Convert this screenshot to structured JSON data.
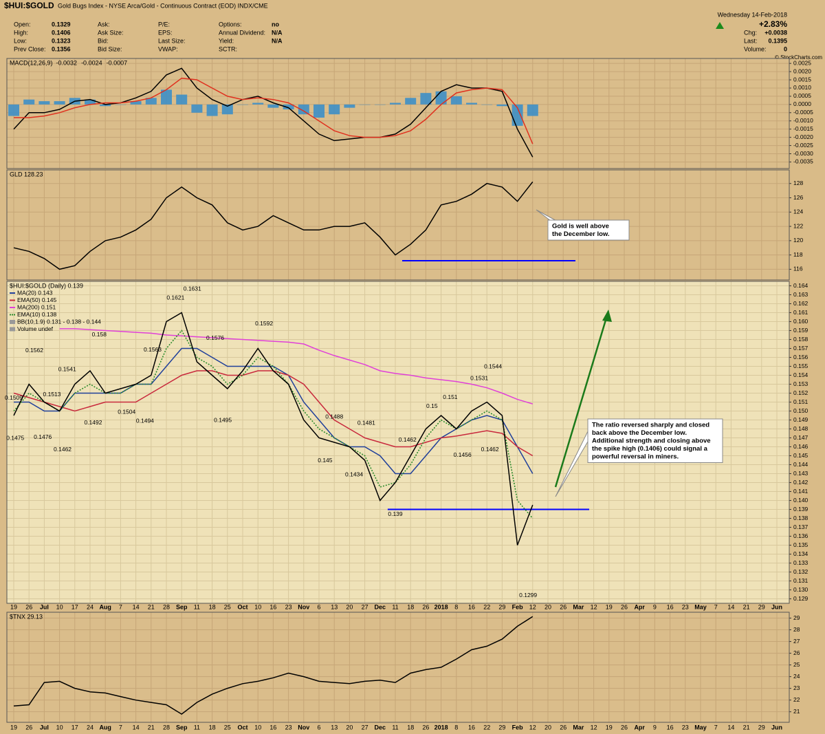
{
  "header": {
    "symbol": "$HUI:$GOLD",
    "description": "Gold Bugs Index - NYSE Arca/Gold - Continuous Contract (EOD) INDX/CME",
    "date": "Wednesday 14-Feb-2018",
    "change_pct": "+2.83%",
    "quote": [
      {
        "label": "Chg:",
        "value": "+0.0038"
      },
      {
        "label": "Last:",
        "value": "0.1395"
      },
      {
        "label": "Volume:",
        "value": "0"
      }
    ],
    "copyright": "© StockCharts.com",
    "fields": [
      [
        {
          "label": "Open:",
          "value": "0.1329"
        },
        {
          "label": "High:",
          "value": "0.1406"
        },
        {
          "label": "Low:",
          "value": "0.1323"
        },
        {
          "label": "Prev Close:",
          "value": "0.1356"
        }
      ],
      [
        {
          "label": "Ask:"
        },
        {
          "label": "Ask Size:"
        },
        {
          "label": "Bid:"
        },
        {
          "label": "Bid Size:"
        }
      ],
      [
        {
          "label": "P/E:"
        },
        {
          "label": "EPS:"
        },
        {
          "label": "Last Size:"
        },
        {
          "label": "VWAP:"
        }
      ],
      [
        {
          "label": "Options:",
          "value": "no"
        },
        {
          "label": "Annual Dividend:",
          "value": "N/A"
        },
        {
          "label": "Yield:",
          "value": "N/A"
        },
        {
          "label": "SCTR:"
        }
      ]
    ]
  },
  "chart_data": [
    {
      "type": "line",
      "title": "MACD(12,26,9)",
      "ylim": [
        -0.0039,
        0.0028
      ],
      "yticks": [
        0.0025,
        {
          "value": 0.002,
          "label": "0.0020"
        },
        0.0015,
        {
          "value": 0.001,
          "label": "0.0010"
        },
        0.0005,
        {
          "value": 0,
          "label": "0.0000"
        },
        -0.0005,
        {
          "value": -0.001,
          "label": "-0.0010"
        },
        -0.0015,
        {
          "value": -0.002,
          "label": "-0.0020"
        },
        -0.0025,
        {
          "value": -0.003,
          "label": "-0.0030"
        },
        -0.0035
      ],
      "series": [
        {
          "name": "-0.0032",
          "color": "#000000",
          "values": [
            -0.0015,
            -0.0005,
            -0.0005,
            -0.0003,
            0.0002,
            0.0003,
            0,
            0.0001,
            0.0004,
            0.0008,
            0.0018,
            0.0022,
            0.001,
            0.0003,
            -0.0001,
            0.0003,
            0.0005,
            0.0001,
            -0.0002,
            -0.001,
            -0.0018,
            -0.0022,
            -0.0021,
            -0.002,
            -0.002,
            -0.0018,
            -0.0012,
            -0.0002,
            0.0008,
            0.0012,
            0.001,
            0.001,
            0.0008,
            -0.0015,
            -0.0032,
            null,
            null,
            null,
            null,
            null,
            null,
            null,
            null,
            null,
            null,
            null,
            null,
            null,
            null,
            null,
            null
          ]
        },
        {
          "name": "-0.0024",
          "color": "#e0301e",
          "values": [
            -0.0008,
            -0.0008,
            -0.0007,
            -0.0005,
            -0.0002,
            0,
            0.0001,
            0.0001,
            0.0002,
            0.0004,
            0.0009,
            0.0016,
            0.0015,
            0.001,
            0.0005,
            0.0003,
            0.0004,
            0.0003,
            0.0001,
            -0.0004,
            -0.001,
            -0.0016,
            -0.0019,
            -0.002,
            -0.002,
            -0.0019,
            -0.0016,
            -0.0009,
            0,
            0.0007,
            0.0009,
            0.001,
            0.0009,
            -0.0002,
            -0.0024,
            null,
            null,
            null,
            null,
            null,
            null,
            null,
            null,
            null,
            null,
            null,
            null,
            null,
            null,
            null,
            null
          ]
        },
        {
          "name": "-0.0007",
          "color": "#3d8fc7",
          "type": "bar",
          "values": [
            -0.0007,
            0.0003,
            0.0002,
            0.0002,
            0.0004,
            0.0003,
            -0.0001,
            0,
            0.0002,
            0.0004,
            0.0009,
            0.0006,
            -0.0005,
            -0.0007,
            -0.0006,
            0,
            0.0001,
            -0.0002,
            -0.0003,
            -0.0006,
            -0.0008,
            -0.0006,
            -0.0002,
            0,
            0,
            0.0001,
            0.0004,
            0.0007,
            0.0008,
            0.0005,
            0.0001,
            0,
            -0.0001,
            -0.0013,
            -0.0007,
            null,
            null,
            null,
            null,
            null,
            null,
            null,
            null,
            null,
            null,
            null,
            null,
            null,
            null,
            null,
            null
          ]
        }
      ]
    },
    {
      "type": "line",
      "title": "GLD 128.23",
      "color": "#000000",
      "ylim": [
        114.5,
        129.9
      ],
      "yticks": [
        116,
        118,
        120,
        122,
        124,
        126,
        128
      ],
      "values": [
        119.0,
        118.5,
        117.5,
        116.0,
        116.5,
        118.5,
        120.0,
        120.5,
        121.5,
        123.0,
        126.0,
        127.5,
        126.0,
        125.0,
        122.5,
        121.5,
        122.0,
        123.5,
        122.5,
        121.5,
        121.5,
        122.0,
        122.0,
        122.5,
        120.5,
        118.0,
        119.5,
        121.5,
        125.0,
        125.5,
        126.5,
        128.0,
        127.5,
        125.5,
        128.23,
        null,
        null,
        null,
        null,
        null,
        null,
        null,
        null,
        null,
        null,
        null,
        null,
        null,
        null,
        null,
        null
      ],
      "level": 117.2,
      "level_color": "#0000ff",
      "callout": [
        "Gold is well above",
        "the December low."
      ],
      "callout_color": "#0000cc"
    },
    {
      "type": "line",
      "title": "$HUI:$GOLD (Daily) 0.139",
      "color": "#000000",
      "categories": [
        "19",
        "26",
        "Jul",
        "10",
        "17",
        "24",
        "Aug",
        "7",
        "14",
        "21",
        "28",
        "Sep",
        "11",
        "18",
        "25",
        "Oct",
        "10",
        "16",
        "23",
        "Nov",
        "6",
        "13",
        "20",
        "27",
        "Dec",
        "11",
        "18",
        "26",
        "2018",
        "8",
        "16",
        "22",
        "29",
        "Feb",
        "12",
        "20",
        "26",
        "Mar",
        "12",
        "19",
        "26",
        "Apr",
        "9",
        "16",
        "23",
        "May",
        "7",
        "14",
        "21",
        "29",
        "Jun"
      ],
      "ylim": [
        0.1285,
        0.1645
      ],
      "yticks": [
        0.129,
        {
          "value": 0.13,
          "label": "0.130"
        },
        0.131,
        0.132,
        0.133,
        0.134,
        0.135,
        0.136,
        0.137,
        0.138,
        0.139,
        {
          "value": 0.14,
          "label": "0.140"
        },
        0.141,
        0.142,
        0.143,
        0.144,
        0.145,
        0.146,
        0.147,
        0.148,
        0.149,
        {
          "value": 0.15,
          "label": "0.150"
        },
        0.151,
        0.152,
        0.153,
        0.154,
        0.155,
        0.156,
        0.157,
        0.158,
        0.159,
        {
          "value": 0.16,
          "label": "0.160"
        },
        0.161,
        0.162,
        0.163,
        0.164
      ],
      "values": [
        0.1495,
        0.153,
        0.151,
        0.15,
        0.153,
        0.1545,
        0.152,
        0.1525,
        0.153,
        0.154,
        0.16,
        0.161,
        0.1555,
        0.154,
        0.1525,
        0.1545,
        0.157,
        0.1545,
        0.153,
        0.149,
        0.147,
        0.1465,
        0.146,
        0.1445,
        0.14,
        0.142,
        0.145,
        0.148,
        0.1495,
        0.148,
        0.15,
        0.151,
        0.1495,
        0.135,
        0.1395,
        null,
        null,
        null,
        null,
        null,
        null,
        null,
        null,
        null,
        null,
        null,
        null,
        null,
        null,
        null,
        null
      ],
      "series": [
        {
          "name": "MA(20) 0.143",
          "color": "#1f3f9a",
          "values": [
            0.151,
            0.151,
            0.15,
            0.15,
            0.152,
            0.152,
            0.152,
            0.152,
            0.153,
            0.153,
            0.155,
            0.157,
            0.157,
            0.156,
            0.155,
            0.155,
            0.155,
            0.155,
            0.154,
            0.151,
            0.149,
            0.147,
            0.146,
            0.146,
            0.145,
            0.143,
            0.143,
            0.145,
            0.147,
            0.148,
            0.149,
            0.1495,
            0.149,
            0.146,
            0.143,
            null,
            null,
            null,
            null,
            null,
            null,
            null,
            null,
            null,
            null,
            null,
            null,
            null,
            null,
            null,
            null
          ]
        },
        {
          "name": "EMA(50) 0.145",
          "color": "#c8283c",
          "values": [
            0.152,
            0.1515,
            0.151,
            0.1505,
            0.15,
            0.1505,
            0.151,
            0.151,
            0.151,
            0.152,
            0.153,
            0.154,
            0.1545,
            0.1545,
            0.154,
            0.154,
            0.1545,
            0.1545,
            0.154,
            0.153,
            0.151,
            0.149,
            0.148,
            0.147,
            0.1465,
            0.146,
            0.146,
            0.1465,
            0.147,
            0.1472,
            0.1475,
            0.1478,
            0.1475,
            0.146,
            0.145,
            null,
            null,
            null,
            null,
            null,
            null,
            null,
            null,
            null,
            null,
            null,
            null,
            null,
            null,
            null,
            null
          ]
        },
        {
          "name": "MA(200) 0.151",
          "color": "#e040d8",
          "values": [
            null,
            null,
            null,
            0.1592,
            0.1592,
            0.1591,
            0.159,
            0.1589,
            0.1588,
            0.1587,
            0.1585,
            0.1584,
            0.1583,
            0.1582,
            0.1581,
            0.158,
            0.1579,
            0.1578,
            0.1577,
            0.1575,
            0.1568,
            0.1562,
            0.1557,
            0.1552,
            0.1545,
            0.1542,
            0.154,
            0.1537,
            0.1535,
            0.1533,
            0.153,
            0.1526,
            0.152,
            0.1513,
            0.1508,
            null,
            null,
            null,
            null,
            null,
            null,
            null,
            null,
            null,
            null,
            null,
            null,
            null,
            null,
            null,
            null
          ]
        },
        {
          "name": "EMA(10) 0.138",
          "color": "#2a8a2a",
          "line_style": "dotted",
          "values": [
            0.15,
            0.152,
            0.151,
            0.15,
            0.152,
            0.153,
            0.152,
            0.152,
            0.153,
            0.153,
            0.157,
            0.159,
            0.156,
            0.155,
            0.153,
            0.154,
            0.156,
            0.155,
            0.153,
            0.15,
            0.148,
            0.147,
            0.146,
            0.145,
            0.1415,
            0.142,
            0.144,
            0.147,
            0.149,
            0.148,
            0.149,
            0.15,
            0.149,
            0.14,
            0.138,
            null,
            null,
            null,
            null,
            null,
            null,
            null,
            null,
            null,
            null,
            null,
            null,
            null,
            null,
            null,
            null
          ]
        }
      ],
      "legend_notes": [
        "BB(10,1.9) 0.131 - 0.138 - 0.144",
        "Volume undef"
      ],
      "point_labels": [
        {
          "x": 0,
          "value": 0.1509
        },
        {
          "x": 1.35,
          "value": 0.1562
        },
        {
          "x": 3.5,
          "value": 0.1541
        },
        {
          "x": 2.5,
          "value": 0.1513
        },
        {
          "x": 0.1,
          "value": 0.1475
        },
        {
          "x": 1.9,
          "value": 0.1476
        },
        {
          "x": 3.2,
          "value": 0.1462
        },
        {
          "x": 5.6,
          "value": 0.158
        },
        {
          "x": 5.2,
          "value": 0.1492
        },
        {
          "x": 7.4,
          "value": 0.1504
        },
        {
          "x": 9.1,
          "value": 0.1563
        },
        {
          "x": 8.6,
          "value": 0.1494
        },
        {
          "x": 10.6,
          "value": 0.1621
        },
        {
          "x": 11.7,
          "value": 0.1631
        },
        {
          "x": 13.2,
          "value": 0.1576
        },
        {
          "x": 13.7,
          "value": 0.1495
        },
        {
          "x": 16.4,
          "value": 0.1592
        },
        {
          "x": 21.0,
          "value": 0.1488
        },
        {
          "x": 20.4,
          "value": 0.145
        },
        {
          "x": 22.3,
          "value": 0.1434
        },
        {
          "x": 23.1,
          "value": 0.1481
        },
        {
          "x": 25.8,
          "value": 0.1462
        },
        {
          "x": 25.0,
          "value": 0.139
        },
        {
          "x": 27.4,
          "value": 0.15
        },
        {
          "x": 28.6,
          "value": 0.151
        },
        {
          "x": 30.5,
          "value": 0.1531
        },
        {
          "x": 31.4,
          "value": 0.1544
        },
        {
          "x": 29.4,
          "value": 0.1456
        },
        {
          "x": 31.2,
          "value": 0.1462
        },
        {
          "x": 33.7,
          "value": 0.1299
        }
      ],
      "level": 0.139,
      "level_color": "#0000ff",
      "callout": [
        "The ratio reversed sharply and closed",
        "back above the December low.",
        "Additional strength and closing above",
        "the spike high (0.1406) could signal a",
        "powerful reversal in miners."
      ],
      "callout_color": "#117a11"
    },
    {
      "type": "line",
      "title": "$TNX 29.13",
      "color": "#000000",
      "categories": [
        "19",
        "26",
        "Jul",
        "10",
        "17",
        "24",
        "Aug",
        "7",
        "14",
        "21",
        "28",
        "Sep",
        "11",
        "18",
        "25",
        "Oct",
        "10",
        "16",
        "23",
        "Nov",
        "6",
        "13",
        "20",
        "27",
        "Dec",
        "11",
        "18",
        "26",
        "2018",
        "8",
        "16",
        "22",
        "29",
        "Feb",
        "12",
        "20",
        "26",
        "Mar",
        "12",
        "19",
        "26",
        "Apr",
        "9",
        "16",
        "23",
        "May",
        "7",
        "14",
        "21",
        "29",
        "Jun"
      ],
      "ylim": [
        20.1,
        29.5
      ],
      "yticks": [
        21,
        22,
        23,
        24,
        25,
        26,
        27,
        28,
        29
      ],
      "values": [
        21.5,
        21.6,
        23.5,
        23.6,
        23.0,
        22.7,
        22.6,
        22.3,
        22.0,
        21.8,
        21.6,
        20.8,
        21.8,
        22.5,
        23.0,
        23.4,
        23.6,
        23.9,
        24.3,
        24.0,
        23.6,
        23.5,
        23.4,
        23.6,
        23.7,
        23.5,
        24.3,
        24.6,
        24.8,
        25.5,
        26.3,
        26.6,
        27.2,
        28.3,
        29.13,
        null,
        null,
        null,
        null,
        null,
        null,
        null,
        null,
        null,
        null,
        null,
        null,
        null,
        null,
        null,
        null
      ]
    }
  ]
}
